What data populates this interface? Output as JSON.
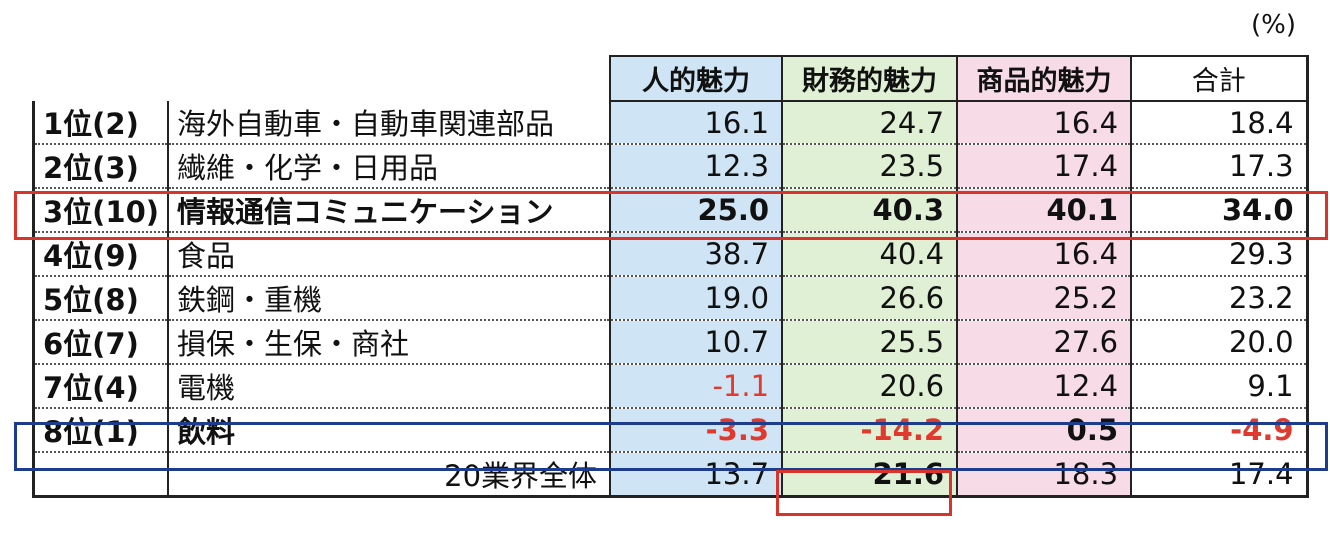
{
  "unit": "(%)",
  "headers": [
    "人的魅力",
    "財務的魅力",
    "商品的魅力",
    "合計"
  ],
  "rows": [
    {
      "rank": "1位(2)",
      "industry": "海外自動車・自動車関連部品",
      "values": [
        "16.1",
        "24.7",
        "16.4",
        "18.4"
      ]
    },
    {
      "rank": "2位(3)",
      "industry": "繊維・化学・日用品",
      "values": [
        "12.3",
        "23.5",
        "17.4",
        "17.3"
      ]
    },
    {
      "rank": "3位(10)",
      "industry": "情報通信コミュニケーション",
      "values": [
        "25.0",
        "40.3",
        "40.1",
        "34.0"
      ]
    },
    {
      "rank": "4位(9)",
      "industry": "食品",
      "values": [
        "38.7",
        "40.4",
        "16.4",
        "29.3"
      ]
    },
    {
      "rank": "5位(8)",
      "industry": "鉄鋼・重機",
      "values": [
        "19.0",
        "26.6",
        "25.2",
        "23.2"
      ]
    },
    {
      "rank": "6位(7)",
      "industry": "損保・生保・商社",
      "values": [
        "10.7",
        "25.5",
        "27.6",
        "20.0"
      ]
    },
    {
      "rank": "7位(4)",
      "industry": "電機",
      "values": [
        "-1.1",
        "20.6",
        "12.4",
        "9.1"
      ]
    },
    {
      "rank": "8位(1)",
      "industry": "飲料",
      "values": [
        "-3.3",
        "-14.2",
        "0.5",
        "-4.9"
      ]
    }
  ],
  "total": {
    "label": "20業界全体",
    "values": [
      "13.7",
      "21.6",
      "18.3",
      "17.4"
    ]
  },
  "colors": {
    "human": "#cfe5f5",
    "financial": "#dff0d4",
    "product": "#f7dbe6",
    "negative": "#e03a2e",
    "highlight_red": "#d9342b",
    "highlight_blue": "#1e3c8c"
  }
}
